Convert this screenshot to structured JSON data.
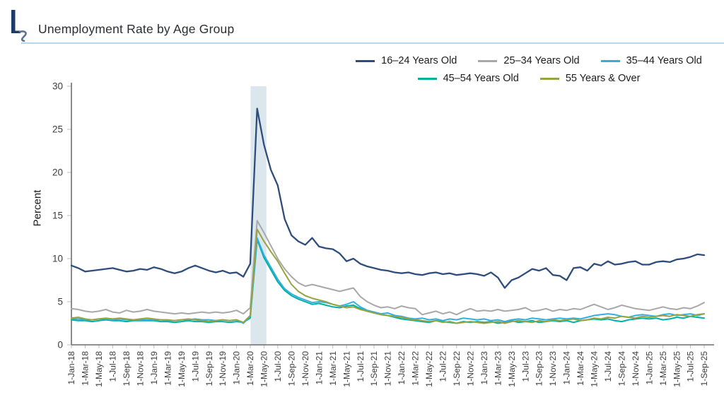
{
  "header": {
    "title": "Unemployment Rate by Age Group",
    "logo": "LS"
  },
  "chart_data": {
    "type": "line",
    "title": "Unemployment Rate by Age Group",
    "xlabel": "",
    "ylabel": "Percent",
    "ylim": [
      0,
      30
    ],
    "yticks": [
      0,
      5,
      10,
      15,
      20,
      25,
      30
    ],
    "x_unit": "monthly",
    "x_start": "1-Jan-18",
    "x_end": "1-Sep-25",
    "grid": "off",
    "legend_position": "top",
    "axis_color": "#6e6e6e",
    "tick_color": "#bdbdbd",
    "x_tick_labels": [
      "1-Jan-18",
      "1-Mar-18",
      "1-May-18",
      "1-Jul-18",
      "1-Sep-18",
      "1-Nov-18",
      "1-Jan-19",
      "1-Mar-19",
      "1-May-19",
      "1-Jul-19",
      "1-Sep-19",
      "1-Nov-19",
      "1-Jan-20",
      "1-Mar-20",
      "1-May-20",
      "1-Jul-20",
      "1-Sep-20",
      "1-Nov-20",
      "1-Jan-21",
      "1-Mar-21",
      "1-May-21",
      "1-Jul-21",
      "1-Sep-21",
      "1-Nov-21",
      "1-Jan-22",
      "1-Mar-22",
      "1-May-22",
      "1-Jul-22",
      "1-Sep-22",
      "1-Nov-22",
      "1-Jan-23",
      "1-Mar-23",
      "1-May-23",
      "1-Jul-23",
      "1-Sep-23",
      "1-Nov-23",
      "1-Jan-24",
      "1-Mar-24",
      "1-May-24",
      "1-Jul-24",
      "1-Sep-24",
      "1-Nov-24",
      "1-Jan-25",
      "1-Mar-25",
      "1-May-25",
      "1-Jul-25",
      "1-Sep-25"
    ],
    "recession_band": {
      "from": "1-Mar-20",
      "to": "1-May-20",
      "start_month_index": 26.05,
      "end_month_index": 28.35,
      "color": "#dce6ed"
    },
    "series": [
      {
        "name": "16–24 Years Old",
        "color": "#2e4d7d",
        "values": [
          9.2,
          8.9,
          8.5,
          8.6,
          8.7,
          8.8,
          8.9,
          8.7,
          8.5,
          8.6,
          8.8,
          8.7,
          9.0,
          8.8,
          8.5,
          8.3,
          8.5,
          8.9,
          9.2,
          8.9,
          8.6,
          8.4,
          8.6,
          8.3,
          8.4,
          7.9,
          9.4,
          27.4,
          23.2,
          20.3,
          18.5,
          14.6,
          12.7,
          12.0,
          11.6,
          12.4,
          11.4,
          11.2,
          11.1,
          10.6,
          9.7,
          10.0,
          9.4,
          9.1,
          8.9,
          8.7,
          8.6,
          8.4,
          8.3,
          8.4,
          8.2,
          8.1,
          8.3,
          8.4,
          8.2,
          8.3,
          8.1,
          8.2,
          8.3,
          8.2,
          8.0,
          8.4,
          7.8,
          6.6,
          7.5,
          7.8,
          8.3,
          8.8,
          8.6,
          8.9,
          8.1,
          8.0,
          7.5,
          8.9,
          9.0,
          8.6,
          9.4,
          9.2,
          9.7,
          9.3,
          9.4,
          9.6,
          9.7,
          9.3,
          9.3,
          9.6,
          9.7,
          9.6,
          9.9,
          10.0,
          10.2,
          10.5,
          10.4
        ]
      },
      {
        "name": "25–34 Years Old",
        "color": "#a8a8aa",
        "values": [
          4.2,
          4.1,
          3.9,
          3.8,
          3.9,
          4.1,
          3.8,
          3.7,
          4.0,
          3.8,
          3.9,
          4.1,
          3.9,
          3.8,
          3.7,
          3.6,
          3.7,
          3.6,
          3.7,
          3.8,
          3.7,
          3.8,
          3.7,
          3.8,
          4.0,
          3.6,
          4.3,
          14.4,
          13.0,
          11.5,
          10.0,
          8.8,
          7.9,
          7.2,
          6.8,
          7.0,
          6.8,
          6.6,
          6.4,
          6.2,
          6.4,
          6.6,
          5.6,
          5.0,
          4.6,
          4.3,
          4.4,
          4.2,
          4.5,
          4.3,
          4.2,
          3.5,
          3.7,
          3.9,
          3.6,
          3.8,
          3.5,
          3.9,
          4.2,
          3.9,
          4.0,
          3.9,
          4.1,
          3.9,
          4.0,
          4.1,
          4.3,
          3.9,
          4.0,
          4.2,
          3.9,
          4.1,
          4.0,
          4.2,
          4.1,
          4.4,
          4.7,
          4.4,
          4.1,
          4.3,
          4.6,
          4.4,
          4.2,
          4.1,
          4.0,
          4.2,
          4.4,
          4.2,
          4.1,
          4.3,
          4.2,
          4.5,
          4.9
        ]
      },
      {
        "name": "35–44 Years Old",
        "color": "#31aee3",
        "values": [
          3.0,
          3.0,
          2.9,
          2.9,
          3.0,
          3.0,
          2.9,
          3.0,
          2.9,
          2.9,
          2.9,
          2.9,
          2.9,
          2.9,
          2.8,
          2.8,
          2.9,
          2.9,
          3.0,
          2.9,
          2.9,
          2.8,
          2.9,
          2.8,
          2.9,
          2.5,
          3.3,
          12.4,
          10.4,
          9.0,
          7.6,
          6.5,
          5.9,
          5.5,
          5.2,
          4.9,
          5.0,
          4.9,
          4.7,
          4.5,
          4.7,
          5.0,
          4.4,
          4.0,
          3.8,
          3.6,
          3.7,
          3.4,
          3.3,
          3.1,
          3.0,
          3.1,
          2.9,
          3.0,
          2.8,
          3.0,
          2.9,
          3.1,
          3.0,
          2.9,
          3.0,
          2.8,
          2.9,
          2.7,
          2.9,
          3.0,
          2.9,
          3.1,
          3.0,
          2.9,
          3.0,
          3.1,
          3.0,
          3.1,
          3.0,
          3.2,
          3.4,
          3.5,
          3.6,
          3.5,
          3.3,
          3.2,
          3.4,
          3.5,
          3.4,
          3.3,
          3.5,
          3.6,
          3.4,
          3.5,
          3.6,
          3.4,
          3.6
        ]
      },
      {
        "name": "45–54 Years Old",
        "color": "#00b0a5",
        "values": [
          2.9,
          2.8,
          2.8,
          2.7,
          2.8,
          2.9,
          2.8,
          2.8,
          2.7,
          2.8,
          2.8,
          2.8,
          2.8,
          2.7,
          2.7,
          2.6,
          2.7,
          2.8,
          2.7,
          2.7,
          2.6,
          2.7,
          2.7,
          2.6,
          2.7,
          2.6,
          3.1,
          12.2,
          10.1,
          8.7,
          7.3,
          6.3,
          5.7,
          5.3,
          5.0,
          4.7,
          4.8,
          4.6,
          4.4,
          4.3,
          4.5,
          4.6,
          4.2,
          3.9,
          3.7,
          3.5,
          3.4,
          3.2,
          3.0,
          2.9,
          2.8,
          2.7,
          2.6,
          2.8,
          2.7,
          2.6,
          2.5,
          2.7,
          2.6,
          2.7,
          2.6,
          2.7,
          2.5,
          2.6,
          2.8,
          2.6,
          2.7,
          2.8,
          2.6,
          2.7,
          2.8,
          2.7,
          2.8,
          2.6,
          2.8,
          2.9,
          3.0,
          2.9,
          3.0,
          2.8,
          2.7,
          2.9,
          3.0,
          3.1,
          3.0,
          3.1,
          2.9,
          3.0,
          3.2,
          3.1,
          3.3,
          3.2,
          3.1
        ]
      },
      {
        "name": "55 Years & Over",
        "color": "#98a23f",
        "values": [
          3.1,
          3.2,
          3.0,
          2.9,
          3.0,
          3.1,
          3.0,
          3.1,
          3.0,
          2.9,
          3.0,
          3.1,
          3.0,
          2.9,
          2.9,
          2.8,
          2.9,
          3.0,
          2.9,
          2.8,
          2.7,
          2.8,
          2.9,
          2.8,
          2.9,
          2.6,
          3.4,
          13.4,
          12.0,
          10.8,
          9.7,
          8.3,
          7.0,
          6.2,
          5.7,
          5.4,
          5.2,
          5.0,
          4.7,
          4.5,
          4.3,
          4.4,
          4.1,
          3.9,
          3.7,
          3.5,
          3.4,
          3.3,
          3.2,
          3.0,
          2.9,
          2.8,
          2.7,
          2.8,
          2.6,
          2.7,
          2.5,
          2.6,
          2.7,
          2.6,
          2.5,
          2.6,
          2.7,
          2.5,
          2.7,
          2.8,
          2.7,
          2.6,
          2.8,
          2.7,
          2.9,
          2.8,
          2.9,
          3.0,
          2.8,
          2.9,
          3.1,
          3.0,
          3.2,
          3.1,
          3.3,
          3.2,
          3.1,
          3.3,
          3.2,
          3.3,
          3.4,
          3.3,
          3.5,
          3.4,
          3.3,
          3.5,
          3.6
        ]
      }
    ]
  }
}
